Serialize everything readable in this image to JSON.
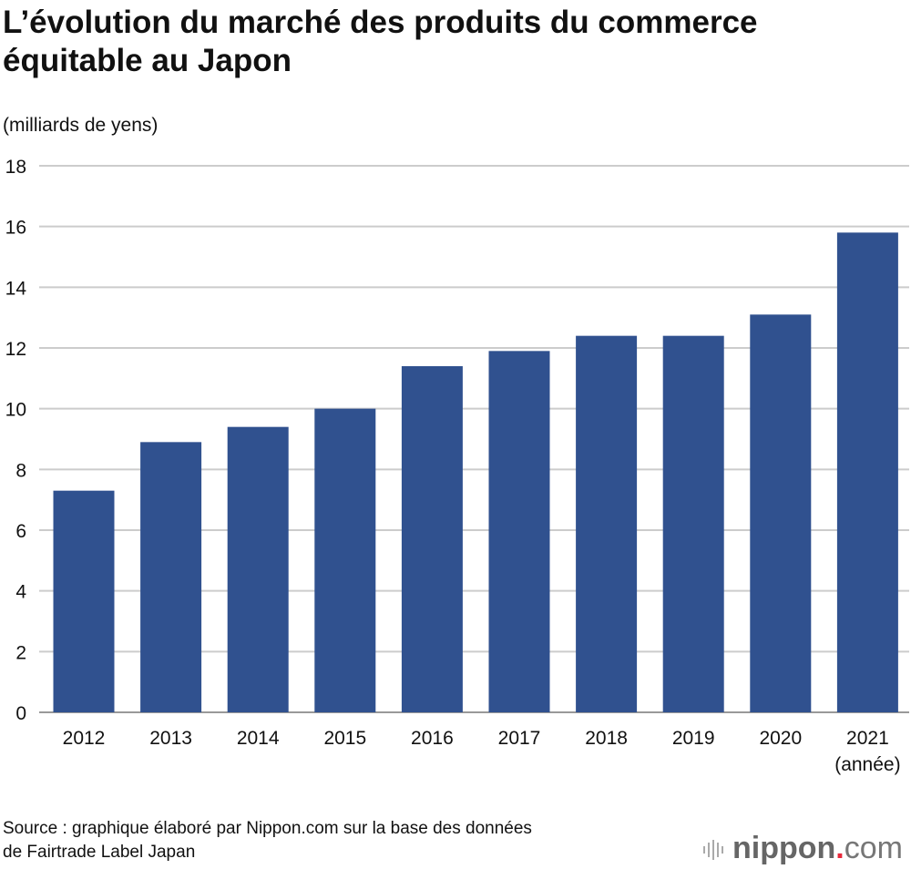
{
  "title": "L’évolution du marché des produits du commerce équitable au Japon",
  "unit_label": "(milliards de yens)",
  "source": [
    "Source : graphique élaboré par Nippon.com sur la base des données",
    "de Fairtrade Label Japan"
  ],
  "logo": {
    "name": "nippon",
    "dot": ".",
    "suffix": "com"
  },
  "colors": {
    "bar": "#30518f",
    "grid": "#cccccc"
  },
  "chart_data": {
    "type": "bar",
    "title": "L’évolution du marché des produits du commerce équitable au Japon",
    "xlabel": "(année)",
    "ylabel": "(milliards de yens)",
    "categories": [
      "2012",
      "2013",
      "2014",
      "2015",
      "2016",
      "2017",
      "2018",
      "2019",
      "2020",
      "2021"
    ],
    "values": [
      7.3,
      8.9,
      9.4,
      10.0,
      11.4,
      11.9,
      12.4,
      12.4,
      13.1,
      15.8
    ],
    "ylim": [
      0,
      18
    ],
    "yticks": [
      0,
      2,
      4,
      6,
      8,
      10,
      12,
      14,
      16,
      18
    ],
    "grid": true
  }
}
